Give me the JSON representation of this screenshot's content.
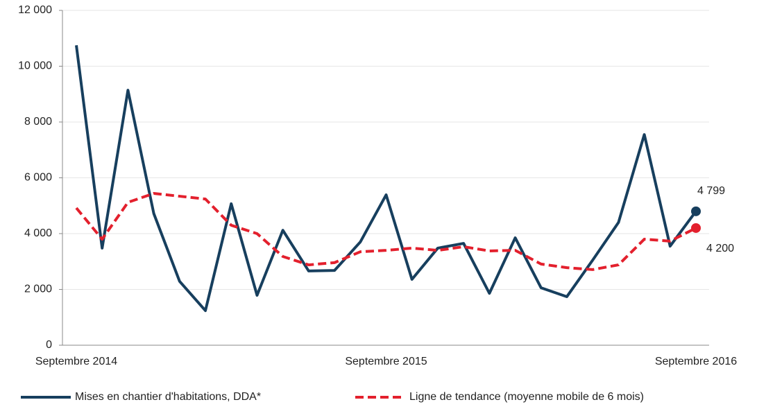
{
  "chart_data": {
    "type": "line",
    "categories": [
      "Septembre 2014",
      null,
      null,
      null,
      null,
      null,
      null,
      null,
      null,
      null,
      null,
      null,
      "Septembre 2015",
      null,
      null,
      null,
      null,
      null,
      null,
      null,
      null,
      null,
      null,
      null,
      "Septembre 2016"
    ],
    "series": [
      {
        "name": "Mises en chantier d'habitations, DDA*",
        "color": "#173f5e",
        "dashed": false,
        "values": [
          10750,
          3480,
          9140,
          4720,
          2290,
          1240,
          5070,
          1790,
          4120,
          2660,
          2680,
          3700,
          5390,
          2360,
          3480,
          3650,
          1860,
          3850,
          2060,
          1740,
          3050,
          4400,
          7550,
          3550,
          4799
        ],
        "value_labels": [
          null,
          null,
          null,
          null,
          null,
          null,
          null,
          null,
          null,
          null,
          null,
          null,
          null,
          null,
          null,
          null,
          null,
          null,
          null,
          null,
          null,
          null,
          null,
          null,
          "4 799"
        ]
      },
      {
        "name": "Ligne de tendance (moyenne mobile de 6 mois)",
        "color": "#e3202d",
        "dashed": true,
        "values": [
          4920,
          3800,
          5120,
          5440,
          5340,
          5240,
          4300,
          4000,
          3180,
          2880,
          2960,
          3350,
          3400,
          3480,
          3400,
          3530,
          3380,
          3400,
          2910,
          2780,
          2710,
          2880,
          3800,
          3730,
          4200
        ],
        "value_labels": [
          null,
          null,
          null,
          null,
          null,
          null,
          null,
          null,
          null,
          null,
          null,
          null,
          null,
          null,
          null,
          null,
          null,
          null,
          null,
          null,
          null,
          null,
          null,
          null,
          "4 200"
        ]
      }
    ],
    "ylim": [
      0,
      12000
    ],
    "yticks": [
      0,
      {
        "value": 2000,
        "label": "2 000"
      },
      {
        "value": 4000,
        "label": "4 000"
      },
      {
        "value": 6000,
        "label": "6 000"
      },
      {
        "value": 8000,
        "label": "8 000"
      },
      {
        "value": 10000,
        "label": "10 000"
      },
      {
        "value": 12000,
        "label": "12 000"
      }
    ],
    "grid": true,
    "legend": "bottom"
  }
}
